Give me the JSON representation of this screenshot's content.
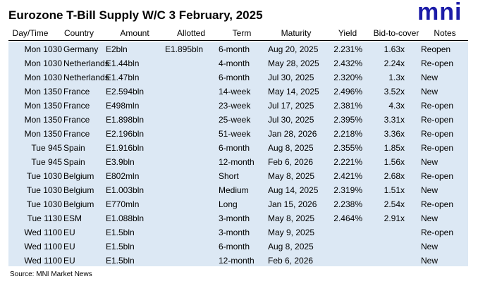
{
  "header": {
    "title": "Eurozone T-Bill Supply W/C 3 February, 2025",
    "logo": "mni"
  },
  "table": {
    "columns": [
      "Day/Time",
      "Country",
      "Amount",
      "Allotted",
      "Term",
      "Maturity",
      "Yield",
      "Bid-to-cover",
      "Notes"
    ],
    "rows": [
      [
        "Mon 1030",
        "Germany",
        "E2bln",
        "E1.895bln",
        "6-month",
        "Aug 20, 2025",
        "2.231%",
        "1.63x",
        "Reopen"
      ],
      [
        "Mon 1030",
        "Netherlands",
        "E1.44bln",
        null,
        "4-month",
        "May 28, 2025",
        "2.432%",
        "2.24x",
        "Re-open"
      ],
      [
        "Mon 1030",
        "Netherlands",
        "E1.47bln",
        null,
        "6-month",
        "Jul 30, 2025",
        "2.320%",
        "1.3x",
        "New"
      ],
      [
        "Mon 1350",
        "France",
        "E2.594bln",
        null,
        "14-week",
        "May 14, 2025",
        "2.496%",
        "3.52x",
        "New"
      ],
      [
        "Mon 1350",
        "France",
        "E498mln",
        null,
        "23-week",
        "Jul 17, 2025",
        "2.381%",
        "4.3x",
        "Re-open"
      ],
      [
        "Mon 1350",
        "France",
        "E1.898bln",
        null,
        "25-week",
        "Jul 30, 2025",
        "2.395%",
        "3.31x",
        "Re-open"
      ],
      [
        "Mon 1350",
        "France",
        "E2.196bln",
        null,
        "51-week",
        "Jan 28, 2026",
        "2.218%",
        "3.36x",
        "Re-open"
      ],
      [
        "Tue 945",
        "Spain",
        "E1.916bln",
        null,
        "6-month",
        "Aug 8, 2025",
        "2.355%",
        "1.85x",
        "Re-open"
      ],
      [
        "Tue 945",
        "Spain",
        "E3.9bln",
        null,
        "12-month",
        "Feb 6, 2026",
        "2.221%",
        "1.56x",
        "New"
      ],
      [
        "Tue 1030",
        "Belgium",
        "E802mln",
        null,
        "Short",
        "May 8, 2025",
        "2.421%",
        "2.68x",
        "Re-open"
      ],
      [
        "Tue 1030",
        "Belgium",
        "E1.003bln",
        null,
        "Medium",
        "Aug 14, 2025",
        "2.319%",
        "1.51x",
        "New"
      ],
      [
        "Tue 1030",
        "Belgium",
        "E770mln",
        null,
        "Long",
        "Jan 15, 2026",
        "2.238%",
        "2.54x",
        "Re-open"
      ],
      [
        "Tue 1130",
        "ESM",
        "E1.088bln",
        null,
        "3-month",
        "May 8, 2025",
        "2.464%",
        "2.91x",
        "New"
      ],
      [
        "Wed 1100",
        "EU",
        "E1.5bln",
        null,
        "3-month",
        "May 9, 2025",
        null,
        null,
        "Re-open"
      ],
      [
        "Wed 1100",
        "EU",
        "E1.5bln",
        null,
        "6-month",
        "Aug 8, 2025",
        null,
        null,
        "New"
      ],
      [
        "Wed 1100",
        "EU",
        "E1.5bln",
        null,
        "12-month",
        "Feb 6, 2026",
        null,
        null,
        "New"
      ]
    ]
  },
  "footer": {
    "source": "Source: MNI Market News"
  }
}
